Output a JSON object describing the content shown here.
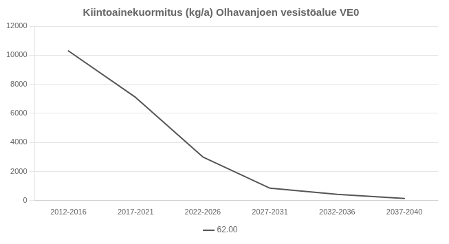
{
  "chart_data": {
    "type": "line",
    "title": "Kiintoainekuormitus (kg/a) Olhavanjoen vesistöalue VE0",
    "categories": [
      "2012-2016",
      "2017-2021",
      "2022-2026",
      "2027-2031",
      "2032-2036",
      "2037-2040"
    ],
    "series": [
      {
        "name": "62.00",
        "color": "#555555",
        "values": [
          10300,
          7100,
          3000,
          850,
          430,
          150
        ]
      }
    ],
    "ylim": [
      0,
      12000
    ],
    "yticks": [
      0,
      2000,
      4000,
      6000,
      8000,
      10000,
      12000
    ],
    "grid": "y",
    "legend": "bottom",
    "marker": "none"
  }
}
